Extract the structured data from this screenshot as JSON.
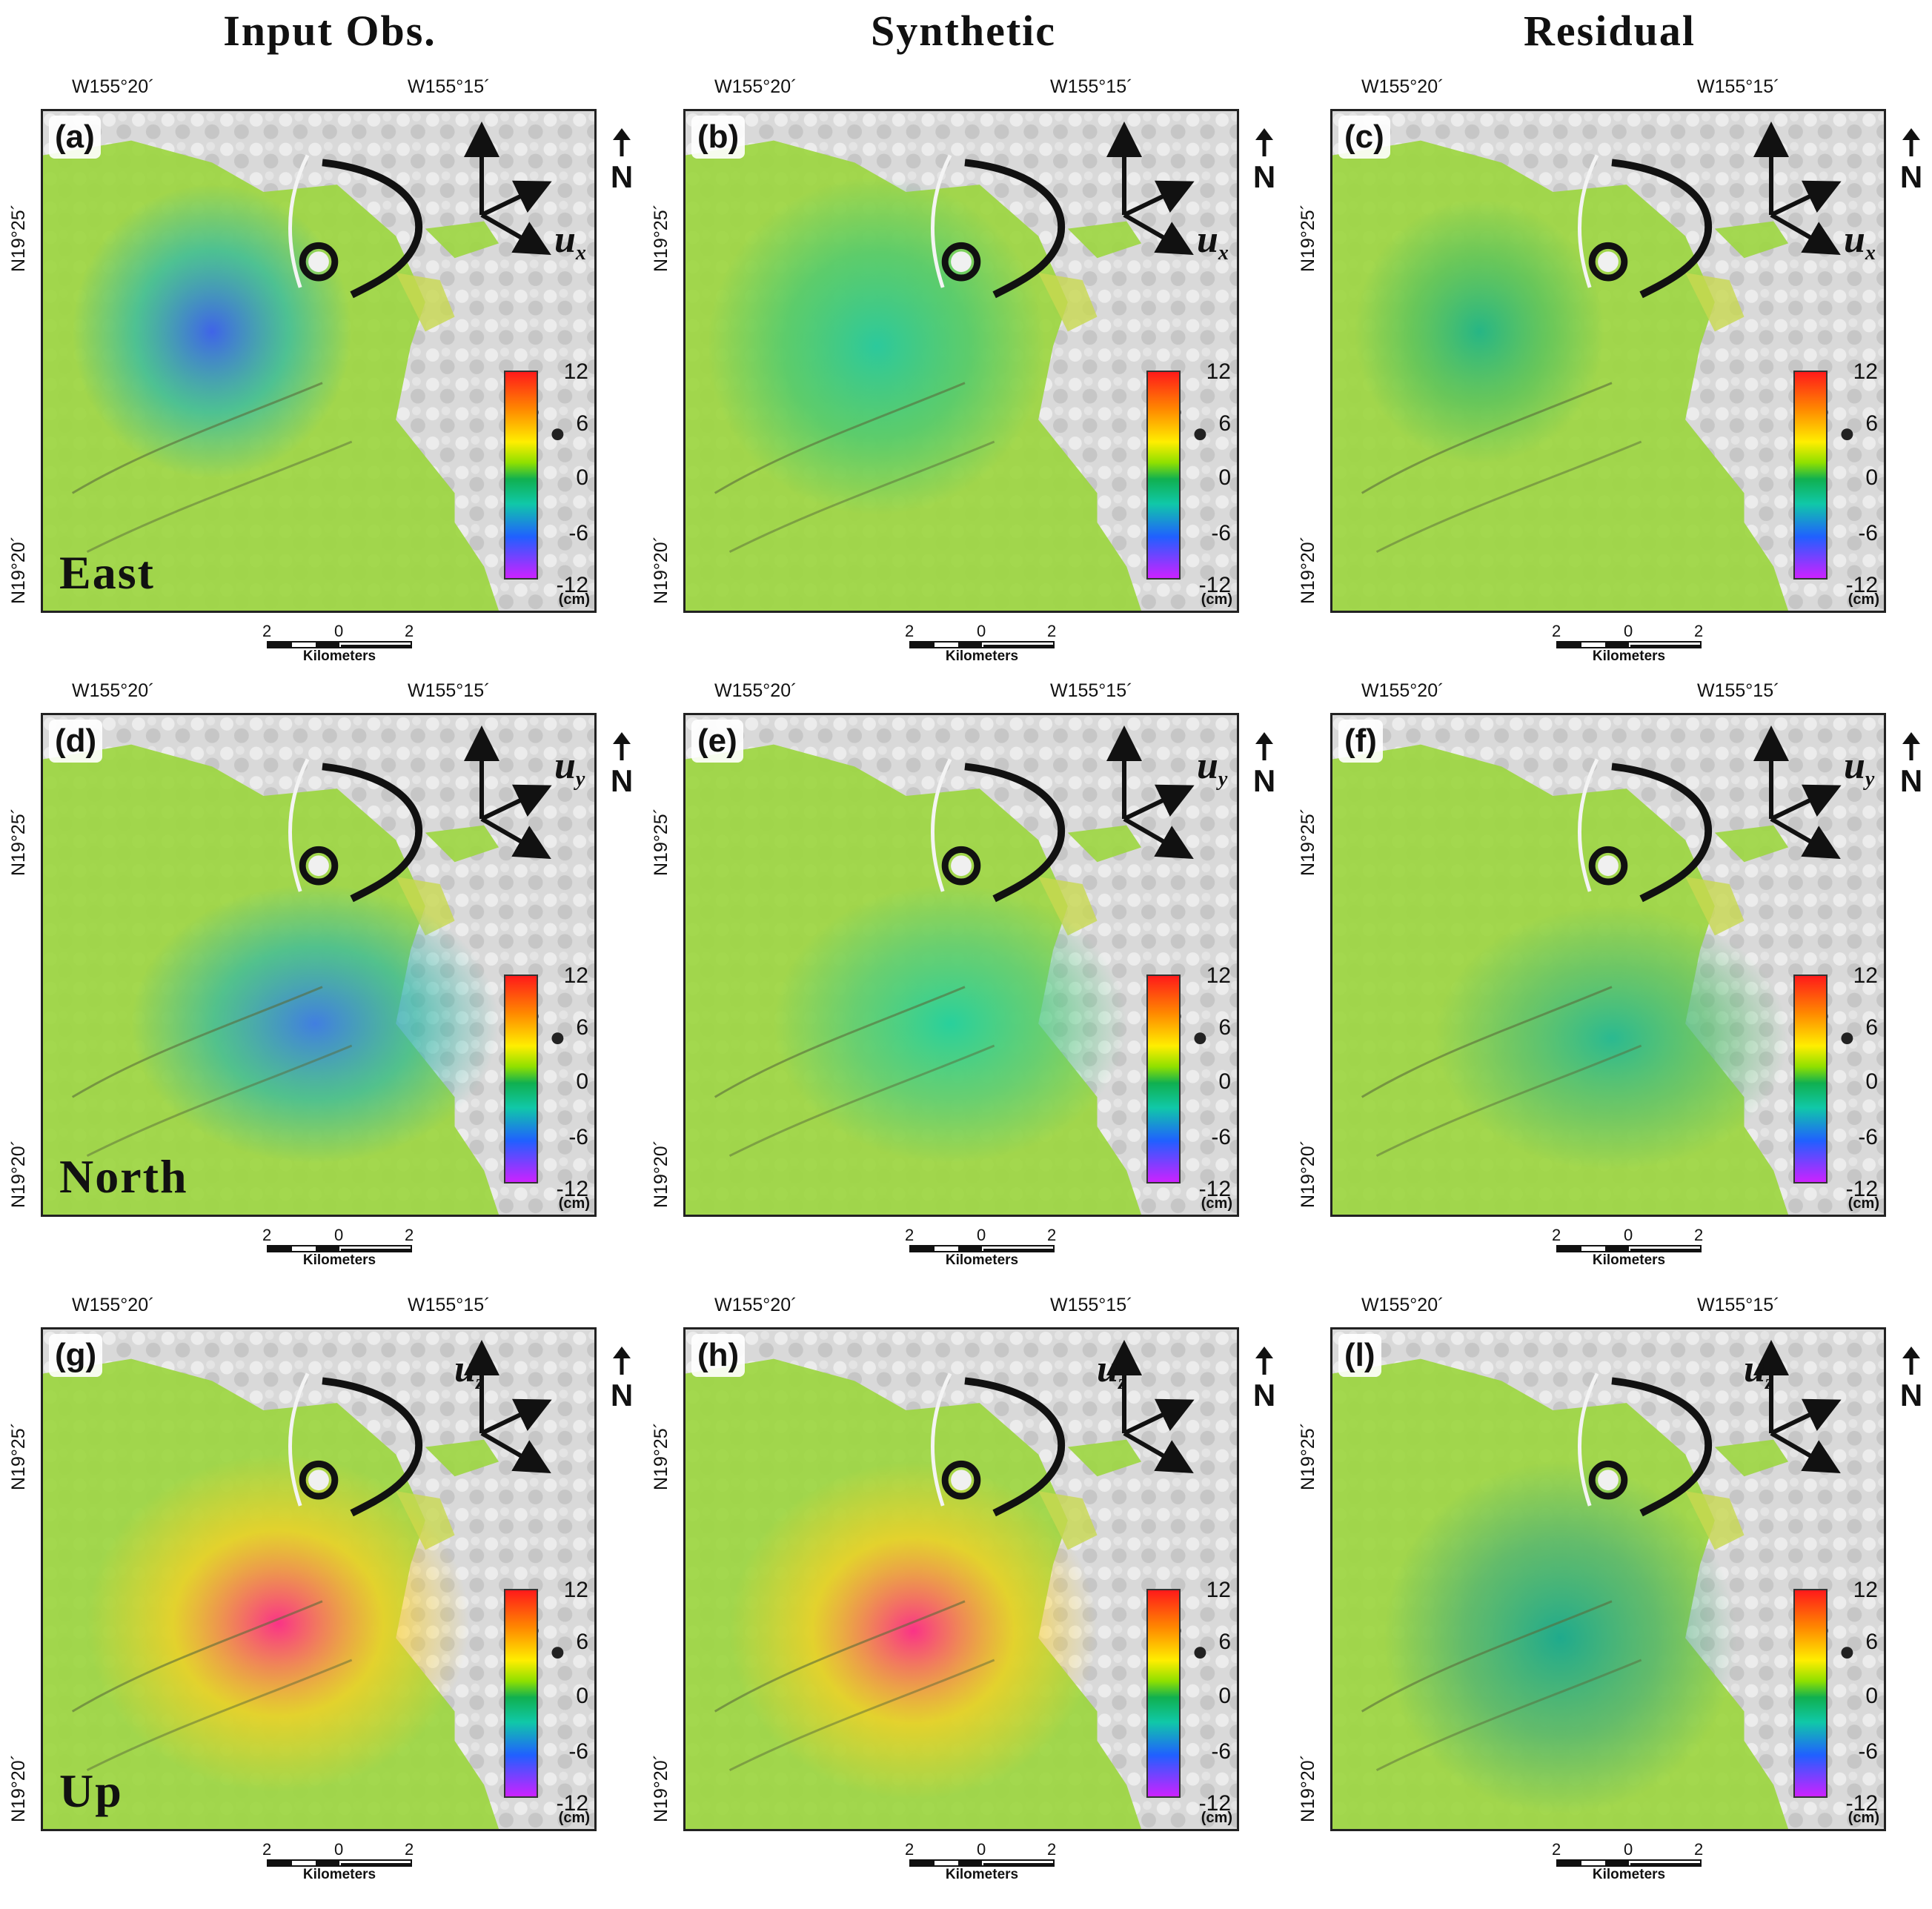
{
  "columns": [
    "Input Obs.",
    "Synthetic",
    "Residual"
  ],
  "rows": [
    "East",
    "North",
    "Up"
  ],
  "panel_letters": [
    [
      "(a)",
      "(b)",
      "(c)"
    ],
    [
      "(d)",
      "(e)",
      "(f)"
    ],
    [
      "(g)",
      "(h)",
      "(l)"
    ]
  ],
  "axis": {
    "lon_ticks": [
      "W155°20´",
      "W155°15´"
    ],
    "lat_ticks": [
      "N19°25´",
      "N19°20´"
    ]
  },
  "north_label": "N",
  "colorbar": {
    "ticks": [
      "12",
      "6",
      "0",
      "-6",
      "-12"
    ],
    "unit": "(cm)"
  },
  "scalebar": {
    "ticks": [
      "2",
      "0",
      "2"
    ],
    "unit": "Kilometers"
  },
  "arrow_labels": {
    "east": {
      "base": "u",
      "sub": "x"
    },
    "north": {
      "base": "u",
      "sub": "y"
    },
    "up": {
      "base": "u",
      "sub": "z"
    }
  },
  "anomaly_colors": {
    "a": "#3a5ef0",
    "b": "#26c8a0",
    "c": "#20b488",
    "d": "#3c7ae8",
    "e": "#22d0a0",
    "f": "#24b894",
    "g": "#ff2a8a",
    "h": "#ff2a8a",
    "l": "#18a890"
  },
  "background_colors": {
    "deformation": "#9cd640",
    "hillshade": "#d9d9d9"
  }
}
